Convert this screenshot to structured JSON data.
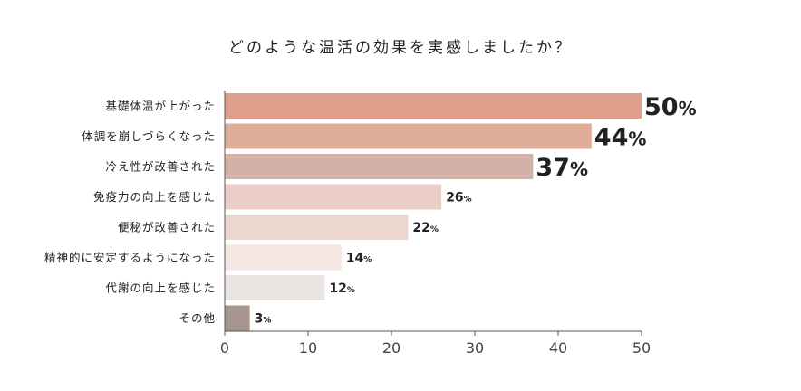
{
  "chart_data": {
    "type": "bar",
    "orientation": "horizontal",
    "title": "どのような温活の効果を実感しましたか？",
    "xlabel": "",
    "ylabel": "",
    "xlim": [
      0,
      50
    ],
    "ticks": [
      0,
      10,
      20,
      30,
      40,
      50
    ],
    "grid": false,
    "categories": [
      "基礎体温が上がった",
      "体調を崩しづらくなった",
      "冷え性が改善された",
      "免疫力の向上を感じた",
      "便秘が改善された",
      "精神的に安定するようになった",
      "代謝の向上を感じた",
      "その他"
    ],
    "values": [
      50,
      44,
      37,
      26,
      22,
      14,
      12,
      3
    ],
    "value_labels": [
      "50",
      "44",
      "37",
      "26",
      "22",
      "14",
      "12",
      "3"
    ],
    "value_unit": "%",
    "colors": [
      "#dea08b",
      "#e0ad98",
      "#d4b1a7",
      "#ebcdc7",
      "#ecd6d0",
      "#f3e6e3",
      "#ebe5e2",
      "#a99590"
    ]
  }
}
